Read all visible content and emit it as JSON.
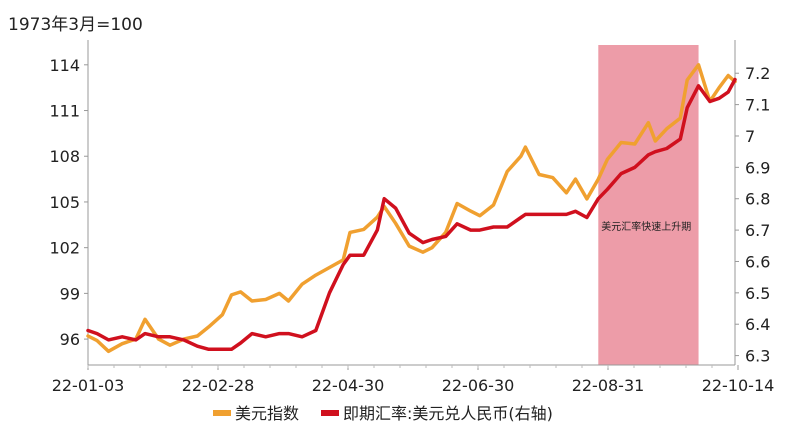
{
  "chart_data": {
    "type": "line",
    "left_axis_unit_label": "1973年3月=100",
    "x_tick_labels": [
      "22-01-03",
      "22-02-28",
      "22-04-30",
      "22-06-30",
      "22-08-31",
      "22-10-14"
    ],
    "y_left": {
      "ticks": [
        96,
        99,
        102,
        105,
        108,
        111,
        114
      ],
      "range": [
        94.3,
        115.3
      ]
    },
    "y_right": {
      "ticks": [
        6.3,
        6.4,
        6.5,
        6.6,
        6.7,
        6.8,
        6.9,
        7.0,
        7.1,
        7.2
      ],
      "range": [
        6.27,
        7.29
      ]
    },
    "highlight": {
      "label": "美元汇率快速上升期",
      "x_start": "2022-08-15",
      "x_end": "2022-09-28",
      "color": "#e8808f"
    },
    "grid": false,
    "legend_position": "bottom",
    "colors": {
      "usd_index": "#F0A030",
      "usd_cny": "#D0101E"
    },
    "series": [
      {
        "name": "美元指数",
        "axis": "left",
        "x": [
          "2022-01-03",
          "2022-01-07",
          "2022-01-12",
          "2022-01-18",
          "2022-01-24",
          "2022-01-28",
          "2022-02-03",
          "2022-02-08",
          "2022-02-14",
          "2022-02-20",
          "2022-02-25",
          "2022-03-03",
          "2022-03-07",
          "2022-03-11",
          "2022-03-16",
          "2022-03-22",
          "2022-03-28",
          "2022-04-01",
          "2022-04-07",
          "2022-04-13",
          "2022-04-19",
          "2022-04-25",
          "2022-04-28",
          "2022-05-04",
          "2022-05-10",
          "2022-05-13",
          "2022-05-18",
          "2022-05-24",
          "2022-05-30",
          "2022-06-03",
          "2022-06-09",
          "2022-06-14",
          "2022-06-20",
          "2022-06-24",
          "2022-06-30",
          "2022-07-06",
          "2022-07-12",
          "2022-07-14",
          "2022-07-20",
          "2022-07-26",
          "2022-08-01",
          "2022-08-05",
          "2022-08-10",
          "2022-08-15",
          "2022-08-19",
          "2022-08-25",
          "2022-08-31",
          "2022-09-06",
          "2022-09-09",
          "2022-09-14",
          "2022-09-20",
          "2022-09-23",
          "2022-09-28",
          "2022-10-03",
          "2022-10-07",
          "2022-10-11",
          "2022-10-14"
        ],
        "values": [
          96.2,
          95.9,
          95.2,
          95.7,
          96.0,
          97.3,
          96.0,
          95.6,
          96.0,
          96.2,
          96.8,
          97.6,
          98.9,
          99.1,
          98.5,
          98.6,
          99.0,
          98.5,
          99.6,
          100.2,
          100.7,
          101.2,
          103.0,
          103.2,
          104.0,
          104.7,
          103.6,
          102.1,
          101.7,
          102.0,
          103.0,
          104.9,
          104.4,
          104.1,
          104.8,
          107.0,
          108.0,
          108.6,
          106.8,
          106.6,
          105.6,
          106.5,
          105.2,
          106.5,
          107.8,
          108.9,
          108.8,
          110.2,
          109.0,
          109.8,
          110.5,
          113.0,
          114.0,
          111.6,
          112.5,
          113.3,
          112.9
        ]
      },
      {
        "name": "即期汇率:美元兑人民币(右轴)",
        "axis": "right",
        "x": [
          "2022-01-03",
          "2022-01-07",
          "2022-01-12",
          "2022-01-18",
          "2022-01-24",
          "2022-01-28",
          "2022-02-03",
          "2022-02-08",
          "2022-02-14",
          "2022-02-20",
          "2022-02-25",
          "2022-03-03",
          "2022-03-07",
          "2022-03-11",
          "2022-03-16",
          "2022-03-22",
          "2022-03-28",
          "2022-04-01",
          "2022-04-07",
          "2022-04-13",
          "2022-04-19",
          "2022-04-25",
          "2022-04-28",
          "2022-05-04",
          "2022-05-10",
          "2022-05-13",
          "2022-05-18",
          "2022-05-24",
          "2022-05-30",
          "2022-06-03",
          "2022-06-09",
          "2022-06-14",
          "2022-06-20",
          "2022-06-24",
          "2022-06-30",
          "2022-07-06",
          "2022-07-12",
          "2022-07-14",
          "2022-07-20",
          "2022-07-26",
          "2022-08-01",
          "2022-08-05",
          "2022-08-10",
          "2022-08-15",
          "2022-08-19",
          "2022-08-25",
          "2022-08-31",
          "2022-09-06",
          "2022-09-09",
          "2022-09-14",
          "2022-09-20",
          "2022-09-23",
          "2022-09-28",
          "2022-10-03",
          "2022-10-07",
          "2022-10-11",
          "2022-10-14"
        ],
        "values": [
          6.38,
          6.37,
          6.35,
          6.36,
          6.35,
          6.37,
          6.36,
          6.36,
          6.35,
          6.33,
          6.32,
          6.32,
          6.32,
          6.34,
          6.37,
          6.36,
          6.37,
          6.37,
          6.36,
          6.38,
          6.5,
          6.59,
          6.62,
          6.62,
          6.7,
          6.8,
          6.77,
          6.69,
          6.66,
          6.67,
          6.68,
          6.72,
          6.7,
          6.7,
          6.71,
          6.71,
          6.74,
          6.75,
          6.75,
          6.75,
          6.75,
          6.76,
          6.74,
          6.8,
          6.83,
          6.88,
          6.9,
          6.94,
          6.95,
          6.96,
          6.99,
          7.09,
          7.16,
          7.11,
          7.12,
          7.14,
          7.18
        ]
      }
    ]
  }
}
